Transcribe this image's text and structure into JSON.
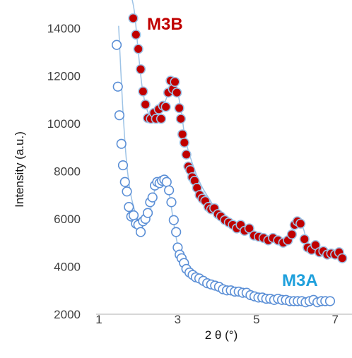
{
  "chart_data": {
    "type": "scatter",
    "title": "",
    "xlabel": "2 θ (°)",
    "ylabel": "Intensity (a.u.)",
    "xlim": [
      0.5,
      7.2
    ],
    "ylim": [
      2000,
      14300
    ],
    "x_ticks": [
      1,
      3,
      5,
      7
    ],
    "y_ticks": [
      2000,
      4000,
      6000,
      8000,
      10000,
      12000,
      14000
    ],
    "grid": false,
    "legend": "none",
    "series": [
      {
        "name": "M3B",
        "label_color": "#c00000",
        "marker_fill": "#c00000",
        "marker_stroke": "#9dc3e6",
        "line_color": "#9dc3e6",
        "curve_x": [
          1.8,
          1.9,
          2.0,
          2.1,
          2.2,
          2.3,
          2.4,
          2.5,
          2.6,
          2.7,
          2.8,
          2.9,
          3.0,
          3.1,
          3.2,
          3.4,
          3.6,
          3.8,
          4.0,
          4.4,
          4.8,
          5.2,
          5.6,
          5.8,
          6.0,
          6.1,
          6.2,
          6.3,
          6.5,
          6.8,
          7.2
        ],
        "curve_y": [
          15500,
          14700,
          13000,
          11500,
          10700,
          10300,
          10250,
          10400,
          10650,
          11000,
          11500,
          11650,
          11300,
          10400,
          9300,
          8200,
          7400,
          6850,
          6350,
          5800,
          5400,
          5200,
          5050,
          5150,
          5700,
          5850,
          5550,
          5000,
          4650,
          4500,
          4650
        ],
        "points": [
          [
            1.87,
            14420
          ],
          [
            1.94,
            13730
          ],
          [
            2.0,
            13130
          ],
          [
            2.06,
            12280
          ],
          [
            2.12,
            11350
          ],
          [
            2.18,
            10800
          ],
          [
            2.24,
            10230
          ],
          [
            2.32,
            10200
          ],
          [
            2.4,
            10450
          ],
          [
            2.45,
            10200
          ],
          [
            2.52,
            10600
          ],
          [
            2.58,
            10200
          ],
          [
            2.63,
            10750
          ],
          [
            2.7,
            10700
          ],
          [
            2.76,
            11300
          ],
          [
            2.82,
            11800
          ],
          [
            2.88,
            11450
          ],
          [
            2.93,
            11750
          ],
          [
            2.98,
            11300
          ],
          [
            3.04,
            10650
          ],
          [
            3.08,
            10200
          ],
          [
            3.12,
            9550
          ],
          [
            3.17,
            9200
          ],
          [
            3.22,
            8700
          ],
          [
            3.27,
            8200
          ],
          [
            3.32,
            8050
          ],
          [
            3.37,
            7750
          ],
          [
            3.43,
            7600
          ],
          [
            3.49,
            7300
          ],
          [
            3.56,
            7000
          ],
          [
            3.63,
            6850
          ],
          [
            3.7,
            6750
          ],
          [
            3.78,
            6500
          ],
          [
            3.85,
            6400
          ],
          [
            3.93,
            6450
          ],
          [
            4.02,
            6200
          ],
          [
            4.1,
            6100
          ],
          [
            4.2,
            5950
          ],
          [
            4.3,
            5850
          ],
          [
            4.4,
            5750
          ],
          [
            4.5,
            5600
          ],
          [
            4.6,
            5750
          ],
          [
            4.7,
            5500
          ],
          [
            4.82,
            5600
          ],
          [
            4.94,
            5300
          ],
          [
            5.06,
            5250
          ],
          [
            5.18,
            5200
          ],
          [
            5.3,
            5100
          ],
          [
            5.42,
            5200
          ],
          [
            5.55,
            5100
          ],
          [
            5.68,
            5000
          ],
          [
            5.8,
            5100
          ],
          [
            5.9,
            5350
          ],
          [
            5.97,
            5750
          ],
          [
            6.04,
            5900
          ],
          [
            6.12,
            5800
          ],
          [
            6.22,
            5150
          ],
          [
            6.3,
            4800
          ],
          [
            6.4,
            4700
          ],
          [
            6.5,
            4900
          ],
          [
            6.6,
            4600
          ],
          [
            6.7,
            4650
          ],
          [
            6.8,
            4500
          ],
          [
            6.9,
            4550
          ],
          [
            7.0,
            4500
          ],
          [
            7.1,
            4600
          ],
          [
            7.18,
            4350
          ]
        ]
      },
      {
        "name": "M3A",
        "label_color": "#1fa0dc",
        "marker_fill": "#ffffff",
        "marker_stroke": "#5b8fd6",
        "line_color": "#9dc3e6",
        "curve_x": [
          1.5,
          1.6,
          1.7,
          1.8,
          1.9,
          2.0,
          2.1,
          2.2,
          2.3,
          2.4,
          2.5,
          2.6,
          2.7,
          2.8,
          2.9,
          3.0,
          3.1,
          3.2,
          3.4,
          3.6,
          3.8,
          4.0,
          4.4,
          4.8,
          5.2,
          5.6,
          6.0,
          6.4,
          6.9
        ],
        "curve_y": [
          14100,
          10800,
          8400,
          7100,
          6400,
          5950,
          5750,
          5800,
          6300,
          7100,
          7550,
          7650,
          7500,
          6900,
          5800,
          4900,
          4400,
          4050,
          3600,
          3400,
          3250,
          3100,
          2950,
          2800,
          2700,
          2650,
          2600,
          2550,
          2550
        ],
        "points": [
          [
            1.45,
            13300
          ],
          [
            1.48,
            11550
          ],
          [
            1.52,
            10350
          ],
          [
            1.57,
            9150
          ],
          [
            1.61,
            8250
          ],
          [
            1.66,
            7550
          ],
          [
            1.71,
            7150
          ],
          [
            1.76,
            6500
          ],
          [
            1.82,
            6100
          ],
          [
            1.88,
            6150
          ],
          [
            1.94,
            5800
          ],
          [
            2.0,
            5750
          ],
          [
            2.06,
            5450
          ],
          [
            2.12,
            5900
          ],
          [
            2.18,
            6000
          ],
          [
            2.24,
            6250
          ],
          [
            2.3,
            6700
          ],
          [
            2.36,
            6900
          ],
          [
            2.42,
            7400
          ],
          [
            2.48,
            7550
          ],
          [
            2.54,
            7500
          ],
          [
            2.6,
            7600
          ],
          [
            2.66,
            7650
          ],
          [
            2.72,
            7550
          ],
          [
            2.78,
            7200
          ],
          [
            2.84,
            6700
          ],
          [
            2.9,
            5950
          ],
          [
            2.96,
            5450
          ],
          [
            3.0,
            4800
          ],
          [
            3.05,
            4500
          ],
          [
            3.1,
            4350
          ],
          [
            3.16,
            4150
          ],
          [
            3.22,
            3900
          ],
          [
            3.3,
            3750
          ],
          [
            3.38,
            3650
          ],
          [
            3.46,
            3550
          ],
          [
            3.55,
            3500
          ],
          [
            3.65,
            3400
          ],
          [
            3.75,
            3300
          ],
          [
            3.85,
            3250
          ],
          [
            3.95,
            3200
          ],
          [
            4.05,
            3150
          ],
          [
            4.15,
            3050
          ],
          [
            4.25,
            3000
          ],
          [
            4.35,
            3000
          ],
          [
            4.45,
            2950
          ],
          [
            4.55,
            2950
          ],
          [
            4.65,
            2900
          ],
          [
            4.75,
            2900
          ],
          [
            4.85,
            2800
          ],
          [
            4.95,
            2750
          ],
          [
            5.05,
            2700
          ],
          [
            5.15,
            2700
          ],
          [
            5.25,
            2650
          ],
          [
            5.35,
            2650
          ],
          [
            5.45,
            2600
          ],
          [
            5.55,
            2650
          ],
          [
            5.65,
            2600
          ],
          [
            5.75,
            2600
          ],
          [
            5.85,
            2550
          ],
          [
            5.95,
            2550
          ],
          [
            6.05,
            2550
          ],
          [
            6.15,
            2550
          ],
          [
            6.25,
            2500
          ],
          [
            6.35,
            2550
          ],
          [
            6.45,
            2600
          ],
          [
            6.55,
            2500
          ],
          [
            6.65,
            2550
          ],
          [
            6.75,
            2550
          ],
          [
            6.87,
            2550
          ]
        ]
      }
    ]
  }
}
